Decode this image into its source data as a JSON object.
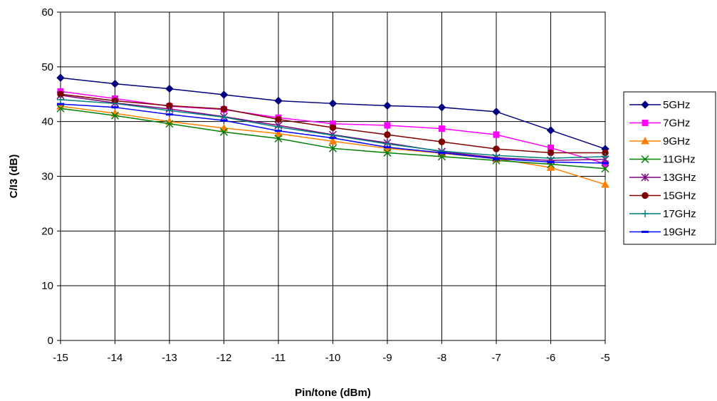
{
  "chart_data": {
    "type": "line",
    "title": "",
    "xlabel": "Pin/tone (dBm)",
    "ylabel": "C/I3 (dB)",
    "x": [
      -15,
      -14,
      -13,
      -12,
      -11,
      -10,
      -9,
      -8,
      -7,
      -6,
      -5
    ],
    "x_ticks": [
      "-15",
      "-14",
      "-13",
      "-12",
      "-11",
      "-10",
      "-9",
      "-8",
      "-7",
      "-6",
      "-5"
    ],
    "xlim": [
      -15,
      -5
    ],
    "ylim": [
      0,
      60
    ],
    "y_ticks": [
      "0",
      "10",
      "20",
      "30",
      "40",
      "50",
      "60"
    ],
    "grid": true,
    "legend_position": "right",
    "series": [
      {
        "name": "5GHz",
        "color": "#000080",
        "marker": "diamond",
        "values": [
          48.0,
          46.9,
          46.0,
          44.9,
          43.8,
          43.3,
          42.9,
          42.6,
          41.8,
          38.4,
          35.0
        ]
      },
      {
        "name": "7GHz",
        "color": "#ff00ff",
        "marker": "square",
        "values": [
          45.5,
          44.2,
          42.8,
          42.2,
          40.7,
          39.6,
          39.3,
          38.7,
          37.6,
          35.2,
          32.3
        ]
      },
      {
        "name": "9GHz",
        "color": "#ff8000",
        "marker": "triangle",
        "values": [
          42.8,
          41.5,
          40.0,
          38.8,
          37.8,
          36.4,
          35.1,
          34.2,
          33.2,
          31.6,
          28.5
        ]
      },
      {
        "name": "11GHz",
        "color": "#008000",
        "marker": "x",
        "values": [
          42.4,
          41.1,
          39.6,
          38.1,
          36.9,
          35.1,
          34.3,
          33.6,
          32.9,
          32.2,
          31.4
        ]
      },
      {
        "name": "13GHz",
        "color": "#800080",
        "marker": "asterisk",
        "values": [
          44.8,
          43.4,
          42.3,
          40.9,
          39.3,
          37.6,
          36.1,
          34.5,
          33.4,
          32.9,
          33.1
        ]
      },
      {
        "name": "15GHz",
        "color": "#800000",
        "marker": "circle",
        "values": [
          45.0,
          43.8,
          42.9,
          42.3,
          40.4,
          38.9,
          37.6,
          36.3,
          35.0,
          34.3,
          34.3
        ]
      },
      {
        "name": "17GHz",
        "color": "#008080",
        "marker": "plus",
        "values": [
          44.0,
          43.3,
          42.0,
          40.8,
          39.0,
          37.5,
          35.9,
          34.6,
          33.8,
          33.3,
          33.6
        ]
      },
      {
        "name": "19GHz",
        "color": "#0000ff",
        "marker": "dash",
        "values": [
          43.2,
          42.6,
          41.3,
          40.2,
          38.3,
          37.0,
          35.3,
          34.3,
          33.2,
          32.6,
          32.4
        ]
      }
    ]
  }
}
